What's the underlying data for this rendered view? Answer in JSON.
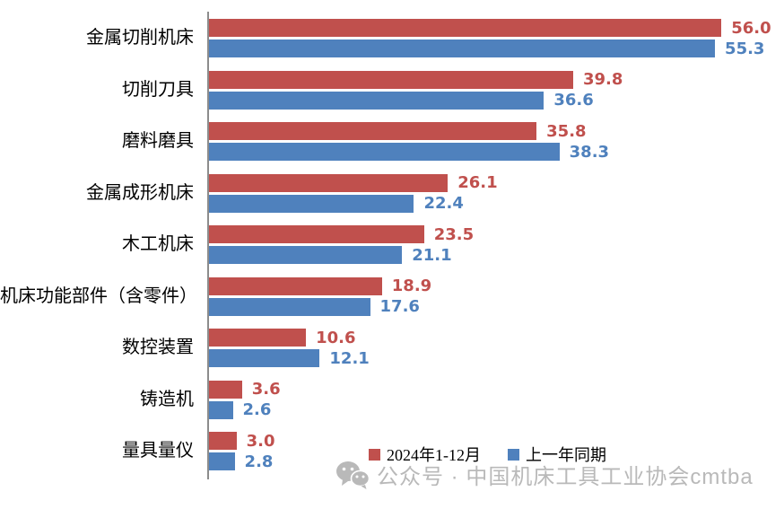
{
  "chart_data": {
    "type": "bar",
    "orientation": "horizontal",
    "title": "",
    "xlabel": "",
    "ylabel": "",
    "xlim": [
      0,
      60
    ],
    "grid": false,
    "legend_position": "bottom",
    "value_labels": "outside-end, one decimal",
    "categories": [
      "金属切削机床",
      "切削刀具",
      "磨料磨具",
      "金属成形机床",
      "木工机床",
      "机床功能部件（含零件）",
      "数控装置",
      "铸造机",
      "量具量仪"
    ],
    "series": [
      {
        "name": "2024年1-12月",
        "color": "#C0504D",
        "values": [
          56.0,
          39.8,
          35.8,
          26.1,
          23.5,
          18.9,
          10.6,
          3.6,
          3.0
        ]
      },
      {
        "name": "上一年同期",
        "color": "#4F81BD",
        "values": [
          55.3,
          36.6,
          38.3,
          22.4,
          21.1,
          17.6,
          12.1,
          2.6,
          2.8
        ]
      }
    ]
  },
  "legend": {
    "items": [
      {
        "label": "2024年1-12月",
        "color": "#C0504D"
      },
      {
        "label": "上一年同期",
        "color": "#4F81BD"
      }
    ]
  },
  "watermark": {
    "icon": "wechat-icon",
    "text": "公众号 · 中国机床工具工业协会cmtba",
    "color": "#b9b9b9"
  },
  "axis": {
    "line_color": "#8c8c8c"
  }
}
